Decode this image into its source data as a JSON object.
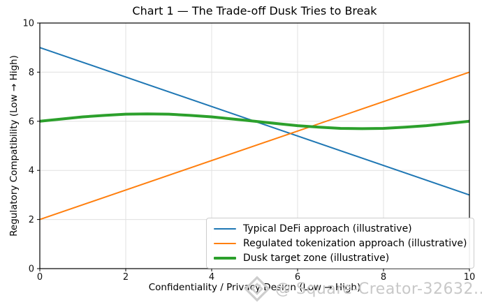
{
  "chart_data": {
    "type": "line",
    "title": "Chart 1 — The Trade-off Dusk Tries to Break",
    "xlabel": "Confidentiality / Privacy Design (Low → High)",
    "ylabel": "Regulatory Compatibility (Low → High)",
    "xlim": [
      0,
      10
    ],
    "ylim": [
      0,
      10
    ],
    "xticks": [
      0,
      2,
      4,
      6,
      8,
      10
    ],
    "yticks": [
      0,
      2,
      4,
      6,
      8,
      10
    ],
    "grid": true,
    "grid_color": "#e0e0e0",
    "spine_color": "#000000",
    "legend_position": "lower right",
    "series": [
      {
        "name": "Typical DeFi approach (illustrative)",
        "color": "#1f77b4",
        "width": 2,
        "x": [
          0,
          10
        ],
        "y": [
          9,
          3
        ]
      },
      {
        "name": "Regulated tokenization approach (illustrative)",
        "color": "#ff7f0e",
        "width": 2,
        "x": [
          0,
          10
        ],
        "y": [
          2,
          8
        ]
      },
      {
        "name": "Dusk target zone (illustrative)",
        "color": "#2ca02c",
        "width": 4,
        "x": [
          0,
          0.5,
          1,
          1.5,
          2,
          2.5,
          3,
          3.5,
          4,
          4.5,
          5,
          5.5,
          6,
          6.5,
          7,
          7.5,
          8,
          8.5,
          9,
          9.5,
          10
        ],
        "y": [
          6.0,
          6.09,
          6.18,
          6.24,
          6.29,
          6.3,
          6.29,
          6.24,
          6.18,
          6.09,
          6.0,
          5.91,
          5.82,
          5.76,
          5.71,
          5.7,
          5.71,
          5.76,
          5.82,
          5.91,
          6.0
        ]
      }
    ]
  },
  "watermark": {
    "text": "@ Square-Creator-32632...",
    "color": "#c8c8c8",
    "logo": "diamond-gem-icon"
  }
}
